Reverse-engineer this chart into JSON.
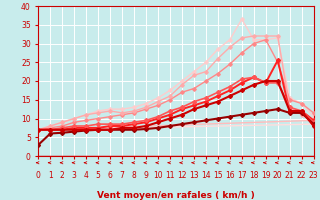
{
  "xlabel": "Vent moyen/en rafales ( km/h )",
  "xlim": [
    0,
    23
  ],
  "ylim": [
    0,
    40
  ],
  "yticks": [
    0,
    5,
    10,
    15,
    20,
    25,
    30,
    35,
    40
  ],
  "xticks": [
    0,
    1,
    2,
    3,
    4,
    5,
    6,
    7,
    8,
    9,
    10,
    11,
    12,
    13,
    14,
    15,
    16,
    17,
    18,
    19,
    20,
    21,
    22,
    23
  ],
  "bg_color": "#c8ecec",
  "grid_color": "#ffffff",
  "series": [
    {
      "x": [
        0,
        1,
        2,
        3,
        4,
        5,
        6,
        7,
        8,
        9,
        10,
        11,
        12,
        13,
        14,
        15,
        16,
        17,
        18,
        19,
        20,
        21,
        22,
        23
      ],
      "y": [
        3.0,
        6.0,
        6.2,
        6.5,
        6.8,
        7.0,
        7.0,
        7.0,
        7.0,
        7.2,
        7.5,
        8.0,
        8.5,
        9.0,
        9.5,
        10.0,
        10.5,
        11.0,
        11.5,
        12.0,
        12.5,
        11.5,
        11.5,
        8.5
      ],
      "color": "#990000",
      "lw": 1.5,
      "marker": "D",
      "ms": 2.0,
      "zorder": 5
    },
    {
      "x": [
        0,
        1,
        2,
        3,
        4,
        5,
        6,
        7,
        8,
        9,
        10,
        11,
        12,
        13,
        14,
        15,
        16,
        17,
        18,
        19,
        20,
        21,
        22,
        23
      ],
      "y": [
        7.0,
        7.0,
        7.0,
        7.0,
        7.0,
        7.0,
        7.0,
        7.5,
        7.5,
        8.0,
        9.0,
        10.0,
        11.0,
        12.5,
        13.5,
        14.5,
        16.0,
        17.5,
        19.0,
        20.0,
        20.0,
        12.0,
        12.0,
        8.0
      ],
      "color": "#cc0000",
      "lw": 1.5,
      "marker": "D",
      "ms": 2.0,
      "zorder": 5
    },
    {
      "x": [
        0,
        1,
        2,
        3,
        4,
        5,
        6,
        7,
        8,
        9,
        10,
        11,
        12,
        13,
        14,
        15,
        16,
        17,
        18,
        19,
        20,
        21,
        22,
        23
      ],
      "y": [
        7.0,
        7.0,
        7.0,
        7.5,
        7.5,
        7.5,
        8.0,
        8.0,
        8.5,
        9.0,
        10.0,
        11.0,
        12.5,
        13.5,
        14.5,
        16.0,
        17.5,
        19.5,
        21.0,
        19.5,
        25.5,
        12.0,
        12.0,
        9.5
      ],
      "color": "#ff2222",
      "lw": 1.4,
      "marker": "D",
      "ms": 2.0,
      "zorder": 4
    },
    {
      "x": [
        0,
        1,
        2,
        3,
        4,
        5,
        6,
        7,
        8,
        9,
        10,
        11,
        12,
        13,
        14,
        15,
        16,
        17,
        18,
        19,
        20,
        21,
        22,
        23
      ],
      "y": [
        7.0,
        7.0,
        7.5,
        8.0,
        8.0,
        8.5,
        8.5,
        8.5,
        9.0,
        9.5,
        10.5,
        12.0,
        13.0,
        14.5,
        15.5,
        17.0,
        18.5,
        20.5,
        21.0,
        19.5,
        19.5,
        13.0,
        12.0,
        9.0
      ],
      "color": "#ff5555",
      "lw": 1.2,
      "marker": "D",
      "ms": 2.0,
      "zorder": 4
    },
    {
      "x": [
        0,
        1,
        2,
        3,
        4,
        5,
        6,
        7,
        8,
        9,
        10,
        11,
        12,
        13,
        14,
        15,
        16,
        17,
        18,
        19,
        20,
        21,
        22,
        23
      ],
      "y": [
        7.0,
        7.5,
        8.0,
        9.0,
        9.5,
        10.0,
        10.5,
        11.0,
        11.5,
        12.5,
        13.5,
        15.0,
        17.0,
        18.0,
        20.0,
        22.0,
        24.5,
        27.5,
        30.0,
        31.0,
        25.0,
        15.0,
        14.0,
        11.5
      ],
      "color": "#ff8888",
      "lw": 1.0,
      "marker": "D",
      "ms": 1.8,
      "zorder": 3
    },
    {
      "x": [
        0,
        1,
        2,
        3,
        4,
        5,
        6,
        7,
        8,
        9,
        10,
        11,
        12,
        13,
        14,
        15,
        16,
        17,
        18,
        19,
        20,
        21,
        22,
        23
      ],
      "y": [
        7.0,
        8.0,
        9.0,
        10.0,
        11.0,
        11.5,
        12.0,
        11.5,
        12.0,
        13.0,
        14.5,
        16.0,
        19.0,
        21.5,
        22.5,
        26.0,
        29.0,
        31.5,
        32.0,
        32.0,
        32.0,
        13.0,
        11.0,
        9.0
      ],
      "color": "#ffaaaa",
      "lw": 1.0,
      "marker": "D",
      "ms": 1.8,
      "zorder": 3
    },
    {
      "x": [
        0,
        1,
        2,
        3,
        4,
        5,
        6,
        7,
        8,
        9,
        10,
        11,
        12,
        13,
        14,
        15,
        16,
        17,
        18,
        19,
        20,
        21,
        22,
        23
      ],
      "y": [
        7.0,
        8.0,
        9.0,
        10.0,
        11.0,
        12.0,
        12.5,
        12.5,
        13.0,
        14.0,
        15.5,
        17.5,
        20.0,
        22.5,
        25.0,
        28.5,
        31.0,
        36.5,
        31.0,
        31.0,
        31.5,
        15.5,
        14.0,
        10.5
      ],
      "color": "#ffcccc",
      "lw": 1.0,
      "marker": "D",
      "ms": 1.8,
      "zorder": 2
    },
    {
      "x": [
        0,
        23
      ],
      "y": [
        7.0,
        9.5
      ],
      "color": "#ffbbbb",
      "lw": 1.0,
      "marker": null,
      "ms": 0,
      "zorder": 2
    },
    {
      "x": [
        0,
        23
      ],
      "y": [
        7.0,
        8.5
      ],
      "color": "#ffdddd",
      "lw": 1.0,
      "marker": null,
      "ms": 0,
      "zorder": 2
    }
  ],
  "arrow_color": "#cc0000",
  "tick_color": "#cc0000",
  "label_color": "#cc0000",
  "tick_fontsize": 5.5,
  "xlabel_fontsize": 6.5
}
